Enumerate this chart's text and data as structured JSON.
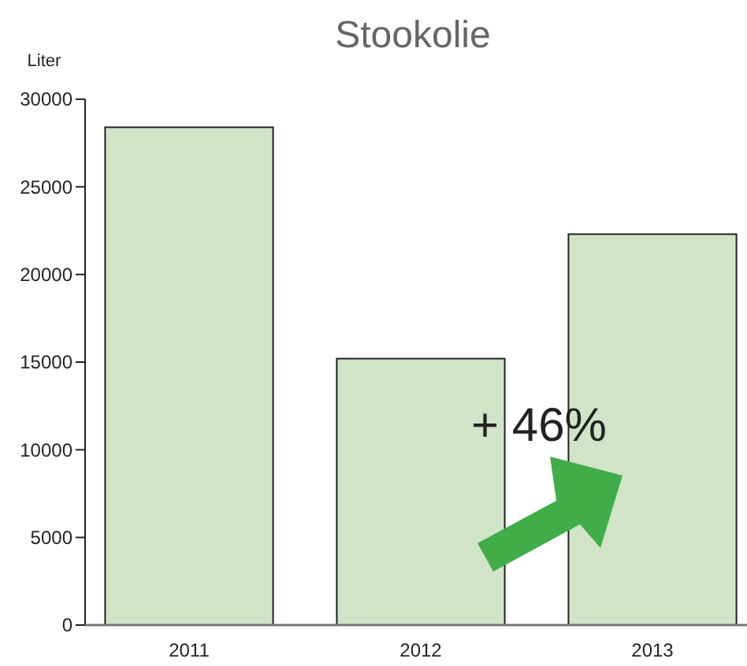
{
  "chart_data": {
    "type": "bar",
    "title": "Stookolie",
    "ylabel": "Liter",
    "categories": [
      "2011",
      "2012",
      "2013"
    ],
    "values": [
      28400,
      15200,
      22300
    ],
    "color": "#d1e4c8",
    "ylim": [
      0,
      30000
    ],
    "yticks": [
      0,
      5000,
      10000,
      15000,
      20000,
      25000,
      30000
    ],
    "grid": false,
    "annotations": [
      "+ 46%"
    ]
  }
}
